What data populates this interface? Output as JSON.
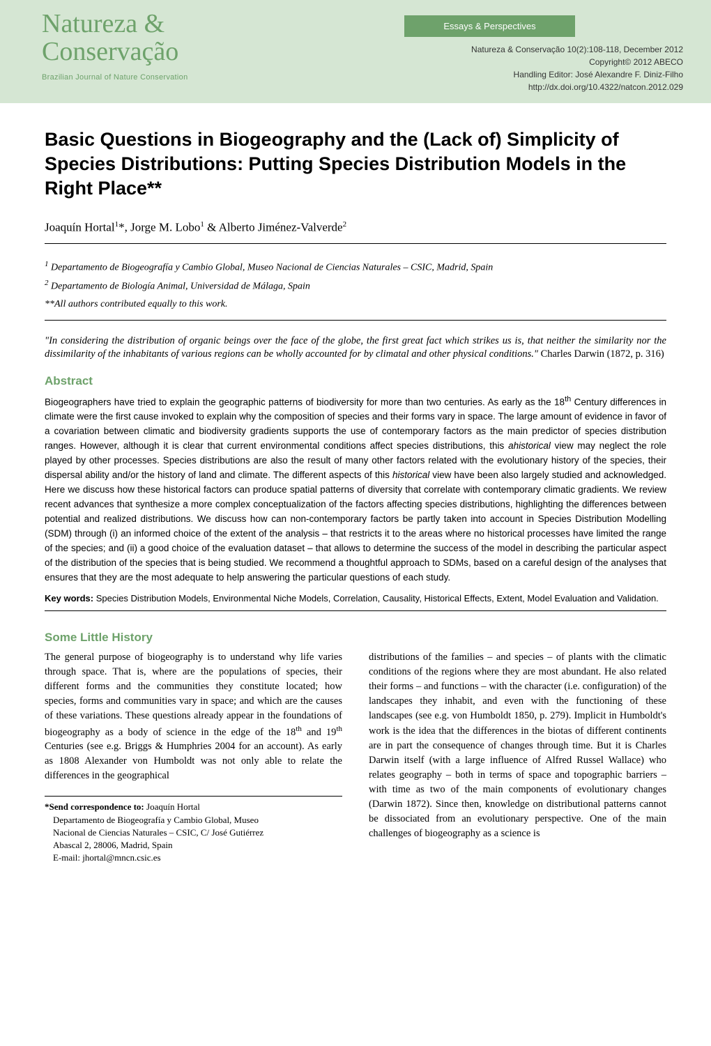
{
  "header": {
    "category": "Essays & Perspectives",
    "journal_title_line1": "Natureza &",
    "journal_title_line2": "Conservação",
    "journal_subtitle": "Brazilian Journal of Nature Conservation",
    "citation": "Natureza & Conservação  10(2):108-118, December 2012",
    "copyright": "Copyright© 2012 ABECO",
    "editor": "Handling Editor: José Alexandre F. Diniz-Filho",
    "doi": "http://dx.doi.org/10.4322/natcon.2012.029"
  },
  "article": {
    "title": "Basic Questions in Biogeography and the (Lack of) Simplicity of Species Distributions: Putting Species Distribution Models in the Right Place**",
    "authors_html": "Joaquín Hortal¹*, Jorge M. Lobo¹ & Alberto Jiménez-Valverde²",
    "author1": "Joaquín Hortal",
    "author1_sup": "1",
    "author1_star": "*",
    "author2": "Jorge M. Lobo",
    "author2_sup": "1",
    "author3": "Alberto Jiménez-Valverde",
    "author3_sup": "2",
    "affil1_sup": "1",
    "affil1": " Departamento de Biogeografía y Cambio Global, Museo Nacional de Ciencias Naturales – CSIC, Madrid, Spain",
    "affil2_sup": "2",
    "affil2": " Departamento de Biología Animal, Universidad de Málaga, Spain",
    "contrib_note": "**All authors contributed equally to this work.",
    "quote": "\"In considering the distribution of organic beings over the face of the globe, the first great fact which strikes us is, that neither the similarity nor the dissimilarity of the inhabitants of various regions can be wholly accounted for by climatal and other physical conditions.\"",
    "quote_attr": " Charles Darwin (1872, p. 316)"
  },
  "abstract": {
    "heading": "Abstract",
    "text_part1": "Biogeographers have tried to explain the geographic patterns of biodiversity for more than two centuries. As early as the 18",
    "text_th": "th",
    "text_part2": " Century differences in climate were the first cause invoked to explain why the composition of species and their forms vary in space. The large amount of evidence in favor of a covariation between climatic and biodiversity gradients supports the use of contemporary factors as the main predictor of species distribution ranges. However, although it is clear that current environmental conditions affect species distributions, this ",
    "text_ahistorical": "ahistorical",
    "text_part3": " view may neglect the role played by other processes. Species distributions are also the result of many other factors related with the evolutionary history of the species, their dispersal ability and/or the history of land and climate. The different aspects of this ",
    "text_historical": "historical",
    "text_part4": " view have been also largely studied and acknowledged. Here we discuss how these historical factors can produce spatial patterns of diversity that correlate with contemporary climatic gradients. We review recent advances that synthesize a more complex conceptualization of the factors affecting species distributions, highlighting the differences between potential and realized distributions. We discuss how can non-contemporary factors be partly taken into account in Species Distribution Modelling (SDM) through (i) an informed choice of the extent of the analysis – that restricts it to the areas where no historical processes have limited the range of the species; and (ii) a good choice of the evaluation dataset – that allows to determine the success of the model in describing the particular aspect of the distribution of the species that is being studied. We recommend a thoughtful approach to SDMs, based on a careful design of the analyses that ensures that they are the most adequate to help answering the particular questions of each study.",
    "keywords_label": "Key words: ",
    "keywords": "Species Distribution Models, Environmental Niche Models, Correlation, Causality, Historical Effects, Extent, Model Evaluation and Validation."
  },
  "body": {
    "section1_heading": "Some Little History",
    "col1_p1a": "The general purpose of biogeography is to understand why life varies through space. That is, where are the populations of species, their different forms and the communities they constitute located; how species, forms and communities vary in space; and which are the causes of these variations. These questions already appear in the foundations of biogeography as a body of science in the edge of the 18",
    "col1_th1": "th",
    "col1_p1b": " and 19",
    "col1_th2": "th",
    "col1_p1c": " Centuries (see e.g. Briggs & Humphries 2004 for an account). As early as 1808 Alexander von Humboldt was not only able to relate the differences in the geographical",
    "col2_p1": "distributions of the families – and species – of plants with the climatic conditions of the regions where they are most abundant. He also related their forms – and functions – with the character (i.e. configuration) of the landscapes they inhabit, and even with the functioning of these landscapes (see e.g. von Humboldt 1850, p. 279). Implicit in Humboldt's work is the idea that the differences in the biotas of different continents are in part the consequence of changes through time. But it is Charles Darwin itself (with a large influence of Alfred Russel Wallace) who relates geography – both in terms of space and topographic barriers – with time as two of the main components of evolutionary changes (Darwin 1872). Since then, knowledge on distributional patterns cannot be dissociated from an evolutionary perspective. One of the main challenges of biogeography as a science is"
  },
  "footnote": {
    "label": "*Send correspondence to: ",
    "name": "Joaquín Hortal",
    "line1": "Departamento de Biogeografía y Cambio Global, Museo ",
    "line2": "Nacional de Ciencias Naturales – CSIC, C/ José Gutiérrez ",
    "line3": "Abascal 2, 28006, Madrid, Spain",
    "line4": "E-mail: jhortal@mncn.csic.es"
  },
  "colors": {
    "banner_bg": "#d5e6d3",
    "accent_green": "#6ea26b",
    "text": "#000000"
  }
}
